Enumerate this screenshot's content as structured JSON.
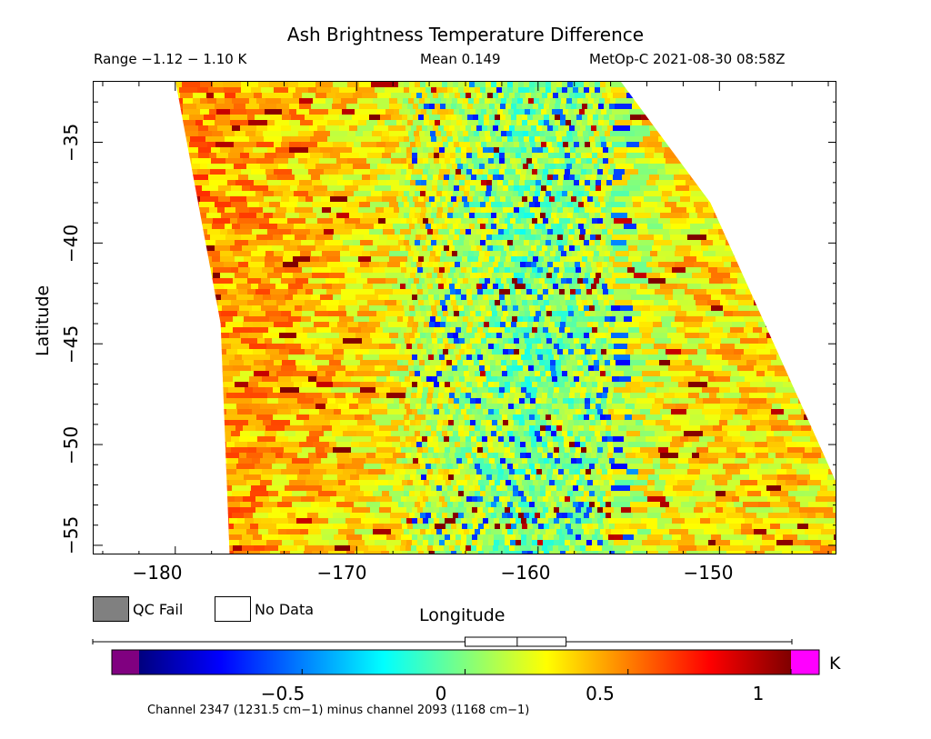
{
  "header": {
    "title": "Ash Brightness Temperature Difference",
    "range_text": "Range −1.12 − 1.10 K",
    "mean_text": "Mean 0.149",
    "satellite_text": "MetOp-C 2021-08-30 08:58Z"
  },
  "legend": {
    "qc_fail_label": "QC Fail",
    "qc_fail_color": "#808080",
    "no_data_label": "No Data",
    "no_data_color": "#ffffff"
  },
  "colorbar": {
    "unit": "K",
    "min": -1.0,
    "max": 1.0,
    "under_color": "#800080",
    "over_color": "#ff00ff",
    "stops": [
      "#00007f",
      "#0000ff",
      "#007fff",
      "#00ffff",
      "#7fff7f",
      "#ffff00",
      "#ff7f00",
      "#ff0000",
      "#7f0000"
    ],
    "tick_values": [
      -0.5,
      0,
      0.5,
      1
    ],
    "tick_labels": [
      "−0.5",
      "0",
      "0.5",
      "1"
    ],
    "boxplot": {
      "min": -1.12,
      "q1": 0.0,
      "median": 0.16,
      "q3": 0.31,
      "max": 1.1
    }
  },
  "footnote": "Channel 2347 (1231.5 cm−1) minus channel 2093 (1168 cm−1)",
  "chart_data": {
    "type": "heatmap",
    "title": "Ash Brightness Temperature Difference",
    "xlabel": "Longitude",
    "ylabel": "Latitude",
    "xlim": [
      -184.5,
      -143.5
    ],
    "ylim": [
      -55.5,
      -32
    ],
    "x_ticks": [
      -180,
      -170,
      -160,
      -150
    ],
    "x_tick_labels": [
      "−180",
      "−170",
      "−160",
      "−150"
    ],
    "y_ticks": [
      -35,
      -40,
      -45,
      -50,
      -55
    ],
    "y_tick_labels": [
      "−35",
      "−40",
      "−45",
      "−50",
      "−55"
    ],
    "value_range": [
      -1.12,
      1.1
    ],
    "mean": 0.149,
    "units": "K",
    "swath_left_edge": [
      [
        -180,
        -32
      ],
      [
        -177.5,
        -44
      ],
      [
        -177,
        -55.5
      ]
    ],
    "swath_right_edge": [
      [
        -155.5,
        -32
      ],
      [
        -150.5,
        -38
      ],
      [
        -147,
        -45
      ],
      [
        -143.5,
        -52
      ]
    ],
    "value_pattern_by_longitude": [
      {
        "longitude": -179,
        "typical_value": 0.45
      },
      {
        "longitude": -172,
        "typical_value": 0.35
      },
      {
        "longitude": -165,
        "typical_value": 0.15
      },
      {
        "longitude": -161,
        "typical_value": 0.0
      },
      {
        "longitude": -158,
        "typical_value": 0.05
      },
      {
        "longitude": -152,
        "typical_value": 0.3
      },
      {
        "longitude": -146,
        "typical_value": 0.3
      }
    ],
    "qc_fail_points": [],
    "annotations": []
  }
}
